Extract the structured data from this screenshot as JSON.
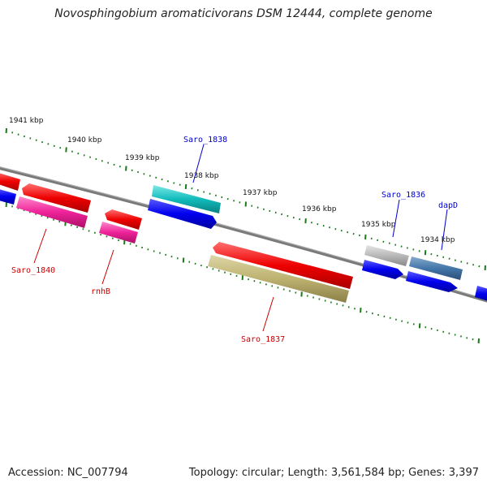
{
  "title": "Novosphingobium aromaticivorans DSM 12444, complete genome",
  "footer": {
    "accession": "Accession: NC_007794",
    "summary": "Topology: circular; Length: 3,561,584 bp; Genes: 3,397"
  },
  "kbp_ticks": [
    "1941 kbp",
    "1940 kbp",
    "1939 kbp",
    "1938 kbp",
    "1937 kbp",
    "1936 kbp",
    "1935 kbp",
    "1934 kbp"
  ],
  "gene_labels": [
    {
      "name": "Saro_1838",
      "color": "#0000cc"
    },
    {
      "name": "Saro_1836",
      "color": "#0000cc"
    },
    {
      "name": "dapD",
      "color": "#0000cc"
    },
    {
      "name": "Saro_1840",
      "color": "#cc0000"
    },
    {
      "name": "rnhB",
      "color": "#cc0000"
    },
    {
      "name": "Saro_1837",
      "color": "#cc0000"
    }
  ],
  "colors": {
    "backbone": "#7a7a7a",
    "ticks": "#1a7a1a",
    "red": "#ee0000",
    "pink": "#ee2299",
    "blue": "#0000ee",
    "cyan": "#11bbbb",
    "olive": "#bdb270",
    "grey": "#b8b8b8",
    "steelblue": "#4477aa"
  }
}
